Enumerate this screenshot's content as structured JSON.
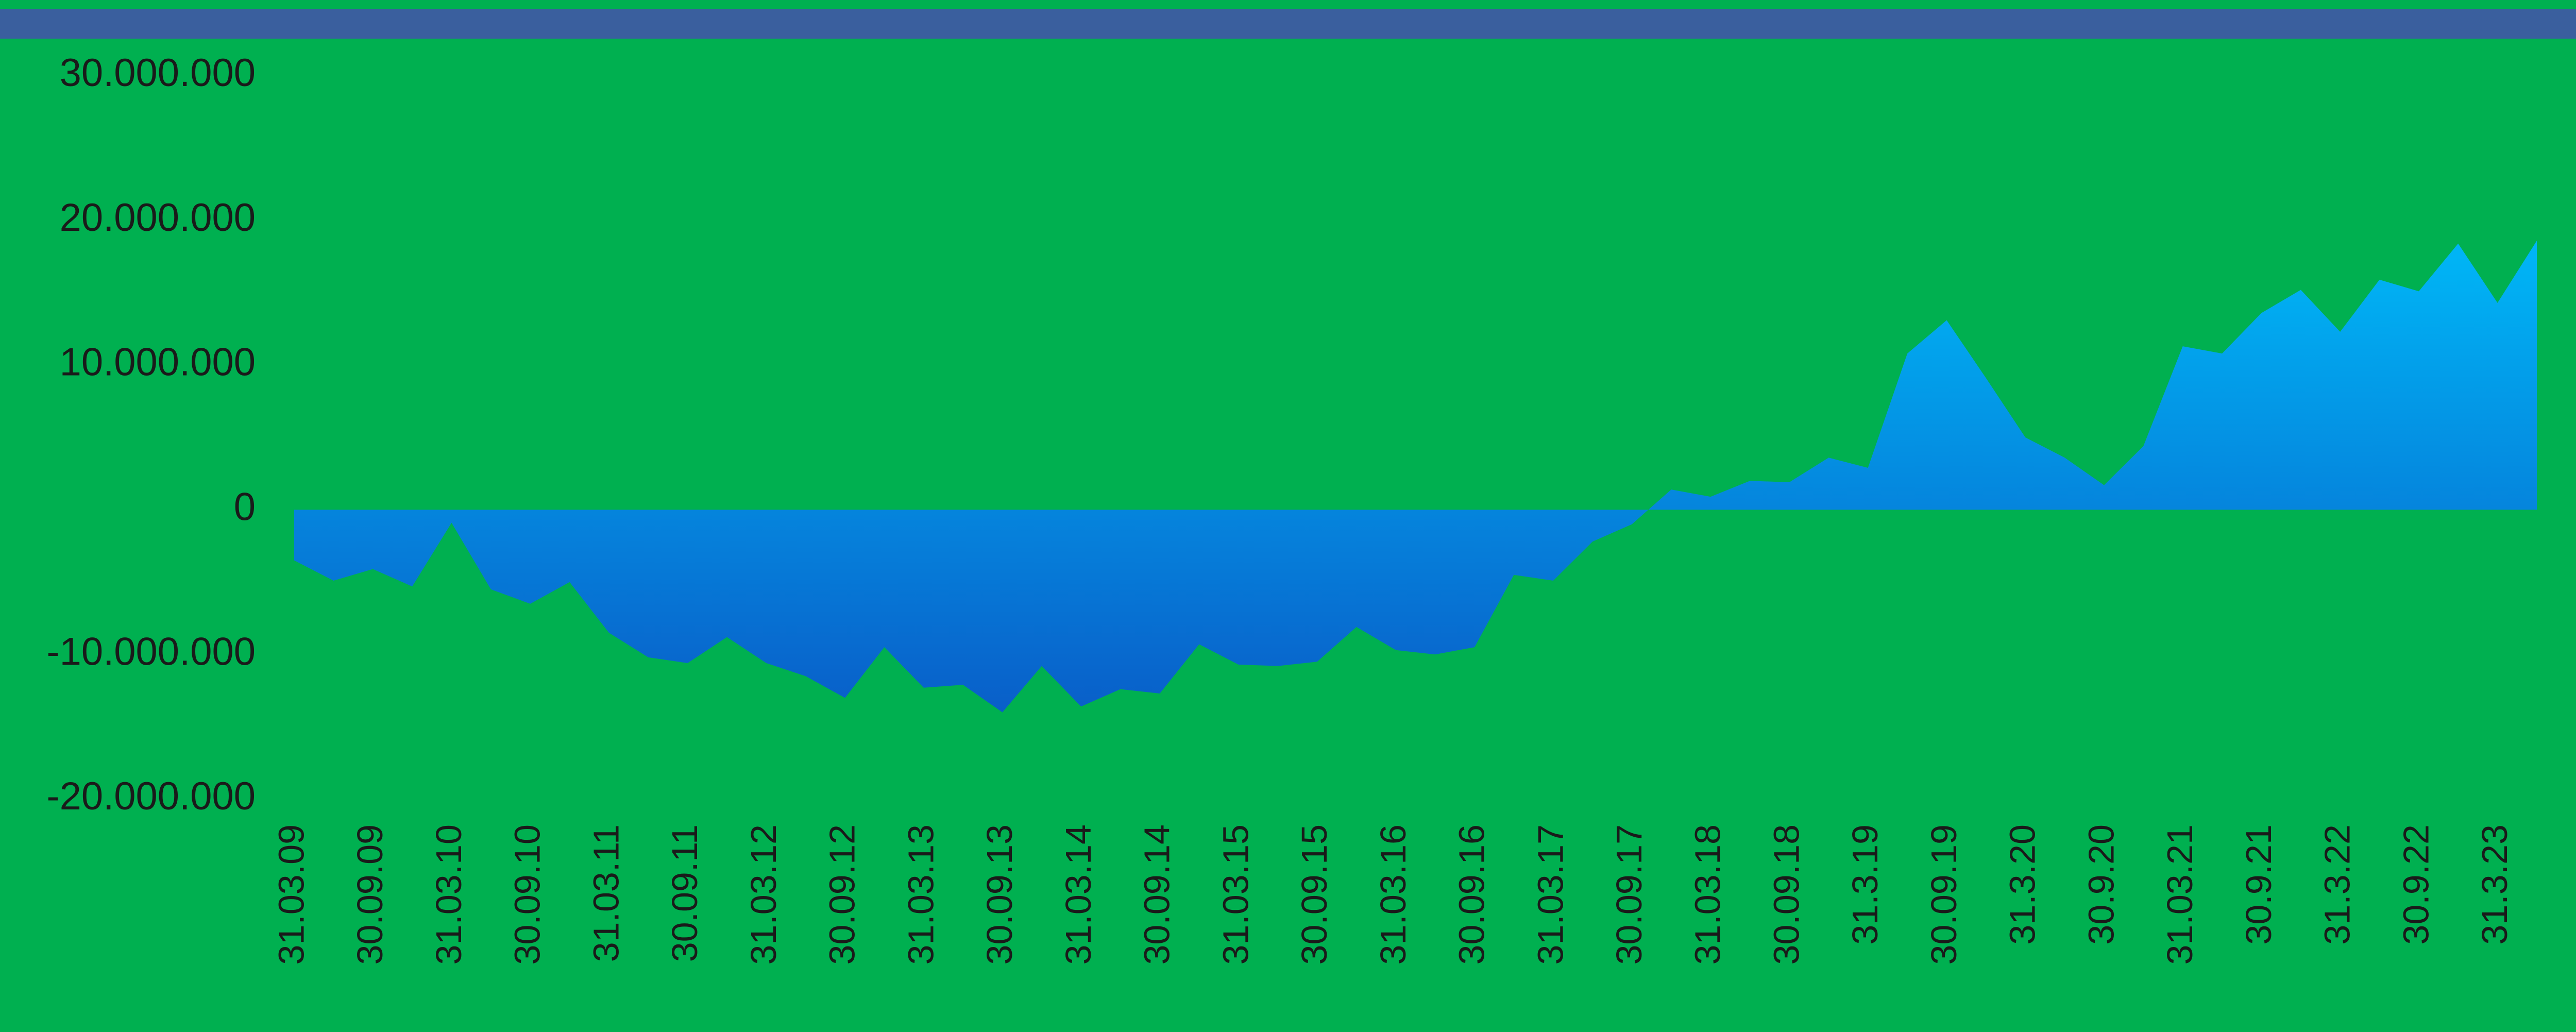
{
  "chart_data": {
    "type": "area",
    "categories": [
      "31.03.09",
      null,
      "30.09.09",
      null,
      "31.03.10",
      null,
      "30.09.10",
      null,
      "31.03.11",
      null,
      "30.09.11",
      null,
      "31.03.12",
      null,
      "30.09.12",
      null,
      "31.03.13",
      null,
      "30.09.13",
      null,
      "31.03.14",
      null,
      "30.09.14",
      null,
      "31.03.15",
      null,
      "30.09.15",
      null,
      "31.03.16",
      null,
      "30.09.16",
      null,
      "31.03.17",
      null,
      "30.09.17",
      null,
      "31.03.18",
      null,
      "30.09.18",
      null,
      "31.3.19",
      null,
      "30.09.19",
      null,
      "31.3.20",
      null,
      "30.9.20",
      null,
      "31.03.21",
      null,
      "30.9.21",
      null,
      "31.3.22",
      null,
      "30.9.22",
      null,
      "31.3.23",
      null
    ],
    "values": [
      -3500000,
      -4900000,
      -4100000,
      -5300000,
      -900000,
      -5500000,
      -6500000,
      -5000000,
      -8500000,
      -10200000,
      -10600000,
      -8800000,
      -10600000,
      -11500000,
      -13000000,
      -9500000,
      -12300000,
      -12100000,
      -14000000,
      -10800000,
      -13600000,
      -12400000,
      -12700000,
      -9300000,
      -10700000,
      -10800000,
      -10500000,
      -8100000,
      -9700000,
      -10000000,
      -9500000,
      -4500000,
      -4900000,
      -2200000,
      -1000000,
      1400000,
      900000,
      2000000,
      1900000,
      3600000,
      2900000,
      10800000,
      13100000,
      9100000,
      5000000,
      3600000,
      1700000,
      4400000,
      11300000,
      10800000,
      13600000,
      15200000,
      12300000,
      15900000,
      15100000,
      18400000,
      14300000,
      18600000
    ],
    "color_top": "#00b4f5",
    "color_bottom": "#0a55c4",
    "ylim": [
      -20000000,
      30000000
    ],
    "yticks": [
      {
        "value": -20000000,
        "label": "-20.000.000"
      },
      {
        "value": -10000000,
        "label": "-10.000.000"
      },
      0,
      {
        "value": 10000000,
        "label": "10.000.000"
      },
      {
        "value": 20000000,
        "label": "20.000.000"
      },
      {
        "value": 30000000,
        "label": "30.000.000"
      }
    ],
    "grid": false
  }
}
